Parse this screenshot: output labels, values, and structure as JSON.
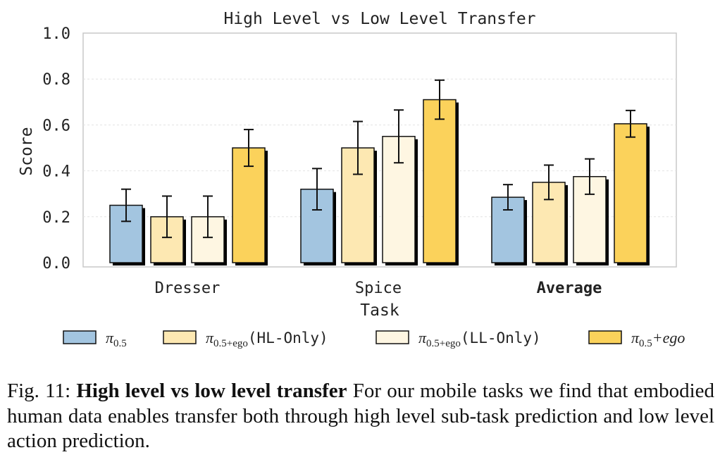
{
  "chart_data": {
    "type": "bar",
    "title": "High Level vs Low Level Transfer",
    "xlabel": "Task",
    "ylabel": "Score",
    "ylim": [
      0,
      1.0
    ],
    "yticks": [
      "0.0",
      "0.2",
      "0.4",
      "0.6",
      "0.8",
      "1.0"
    ],
    "categories": [
      "Dresser",
      "Spice",
      "Average"
    ],
    "category_bold": [
      false,
      false,
      true
    ],
    "grid": true,
    "series": [
      {
        "name": "π0.5",
        "legend": {
          "base": "π",
          "sub": "0.5",
          "suffix": ""
        },
        "color": "#a3c5e0",
        "values": [
          0.25,
          0.32,
          0.285
        ],
        "err": [
          0.07,
          0.09,
          0.055
        ]
      },
      {
        "name": "π0.5+ego(HL-Only)",
        "legend": {
          "base": "π",
          "sub": "0.5+ego",
          "suffix": "(HL-Only)"
        },
        "color": "#fde8b2",
        "values": [
          0.2,
          0.5,
          0.35
        ],
        "err": [
          0.09,
          0.115,
          0.075
        ]
      },
      {
        "name": "π0.5+ego(LL-Only)",
        "legend": {
          "base": "π",
          "sub": "0.5+ego",
          "suffix": "(LL-Only)"
        },
        "color": "#fef6e2",
        "values": [
          0.2,
          0.55,
          0.375
        ],
        "err": [
          0.09,
          0.115,
          0.077
        ]
      },
      {
        "name": "π0.5+ego",
        "legend": {
          "base": "π",
          "sub": "0.5",
          "suffix": "+ego"
        },
        "color": "#fbd25b",
        "values": [
          0.5,
          0.71,
          0.605
        ],
        "err": [
          0.08,
          0.085,
          0.058
        ]
      }
    ]
  },
  "caption": {
    "label": "Fig. 11:",
    "bold": "High level vs low level transfer",
    "text": "For our mobile tasks we find that embodied human data enables transfer both through high level sub-task prediction and low level action prediction."
  }
}
